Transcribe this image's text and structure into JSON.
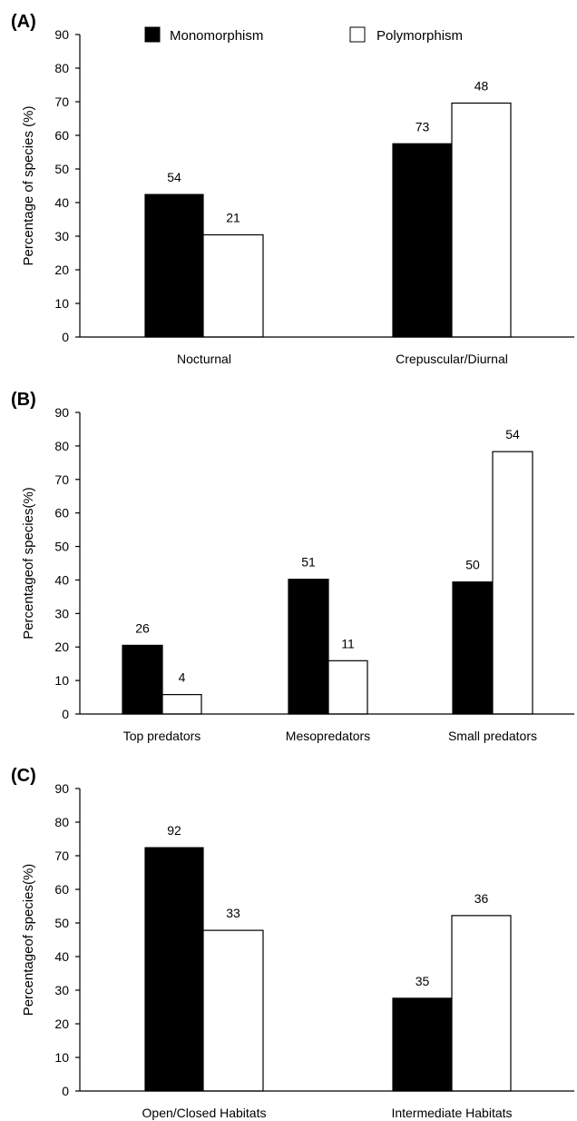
{
  "legend": {
    "items": [
      {
        "name": "Monomorphism",
        "color": "#000000"
      },
      {
        "name": "Polymorphism",
        "color": "#ffffff"
      }
    ]
  },
  "chart_data": [
    {
      "type": "bar",
      "panel_label": "(A)",
      "ylabel": "Percentage of species (%)",
      "ylim": [
        0,
        90
      ],
      "yticks": [
        0,
        10,
        20,
        30,
        40,
        50,
        60,
        70,
        80,
        90
      ],
      "categories": [
        "Nocturnal",
        "Crepuscular/Diurnal"
      ],
      "series": [
        {
          "name": "Monomorphism",
          "color": "#000000",
          "values": [
            42.4,
            57.5
          ],
          "labels": [
            "54",
            "73"
          ]
        },
        {
          "name": "Polymorphism",
          "color": "#ffffff",
          "values": [
            30.4,
            69.6
          ],
          "labels": [
            "21",
            "48"
          ]
        }
      ]
    },
    {
      "type": "bar",
      "panel_label": "(B)",
      "ylabel": "Percentageof species(%)",
      "ylim": [
        0,
        90
      ],
      "yticks": [
        0,
        10,
        20,
        30,
        40,
        50,
        60,
        70,
        80,
        90
      ],
      "categories": [
        "Top predators",
        "Mesopredators",
        "Small predators"
      ],
      "series": [
        {
          "name": "Monomorphism",
          "color": "#000000",
          "values": [
            20.5,
            40.2,
            39.4
          ],
          "labels": [
            "26",
            "51",
            "50"
          ]
        },
        {
          "name": "Polymorphism",
          "color": "#ffffff",
          "values": [
            5.8,
            15.9,
            78.3
          ],
          "labels": [
            "4",
            "11",
            "54"
          ]
        }
      ]
    },
    {
      "type": "bar",
      "panel_label": "(C)",
      "ylabel": "Percentageof species(%)",
      "ylim": [
        0,
        90
      ],
      "yticks": [
        0,
        10,
        20,
        30,
        40,
        50,
        60,
        70,
        80,
        90
      ],
      "categories": [
        "Open/Closed Habitats",
        "Intermediate Habitats"
      ],
      "series": [
        {
          "name": "Monomorphism",
          "color": "#000000",
          "values": [
            72.4,
            27.6
          ],
          "labels": [
            "92",
            "35"
          ]
        },
        {
          "name": "Polymorphism",
          "color": "#ffffff",
          "values": [
            47.8,
            52.2
          ],
          "labels": [
            "33",
            "36"
          ]
        }
      ]
    }
  ]
}
